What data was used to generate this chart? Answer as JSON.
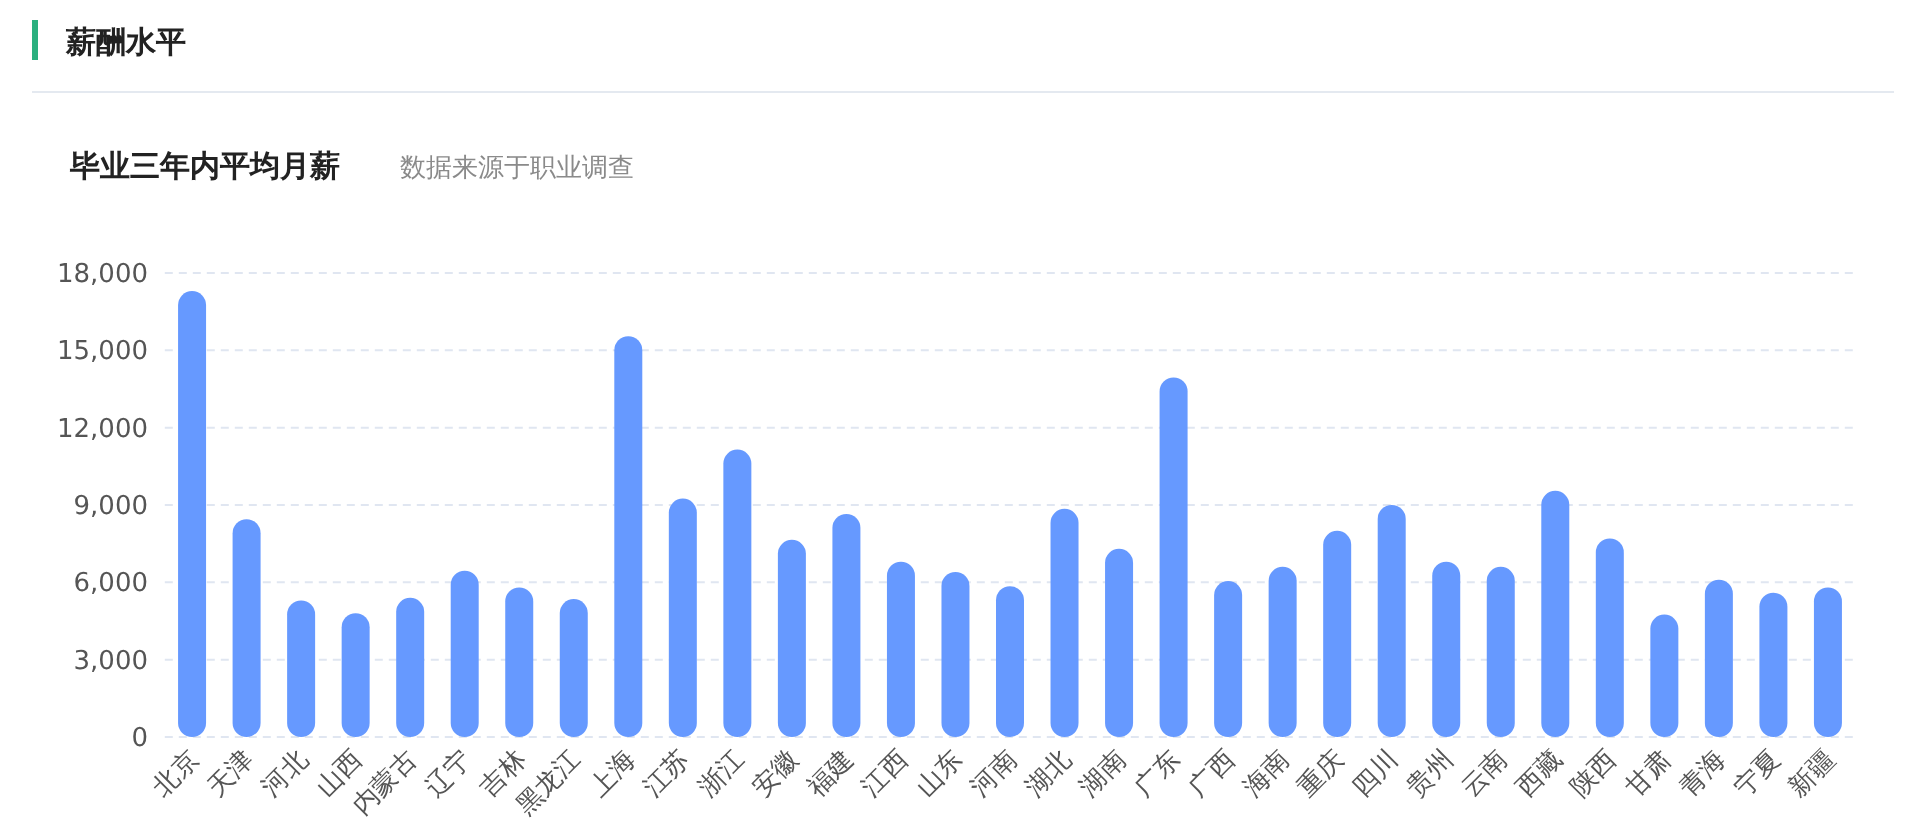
{
  "chart_data": {
    "type": "bar",
    "title": "薪酬水平",
    "subtitle": "毕业三年内平均月薪",
    "annotations": [
      "数据来源于职业调查"
    ],
    "categories": [
      "北京",
      "天津",
      "河北",
      "山西",
      "内蒙古",
      "辽宁",
      "吉林",
      "黑龙江",
      "上海",
      "江苏",
      "浙江",
      "安徽",
      "福建",
      "江西",
      "山东",
      "河南",
      "湖北",
      "湖南",
      "广东",
      "广西",
      "海南",
      "重庆",
      "四川",
      "贵州",
      "云南",
      "西藏",
      "陕西",
      "甘肃",
      "青海",
      "宁夏",
      "新疆"
    ],
    "values": [
      17300,
      8450,
      5300,
      4800,
      5400,
      6450,
      5800,
      5350,
      15550,
      9250,
      11150,
      7650,
      8650,
      6800,
      6400,
      5850,
      8850,
      7300,
      13950,
      6050,
      6600,
      8000,
      9000,
      6800,
      6600,
      9550,
      7700,
      4750,
      6100,
      5600,
      5800
    ],
    "color": "#6699ff",
    "ylim": [
      0,
      18000
    ],
    "yticks": [
      0,
      {
        "value": 3000,
        "label": "3,000"
      },
      {
        "value": 6000,
        "label": "6,000"
      },
      {
        "value": 9000,
        "label": "9,000"
      },
      {
        "value": 12000,
        "label": "12,000"
      },
      {
        "value": 15000,
        "label": "15,000"
      },
      {
        "value": 18000,
        "label": "18,000"
      }
    ],
    "grid": "y"
  }
}
